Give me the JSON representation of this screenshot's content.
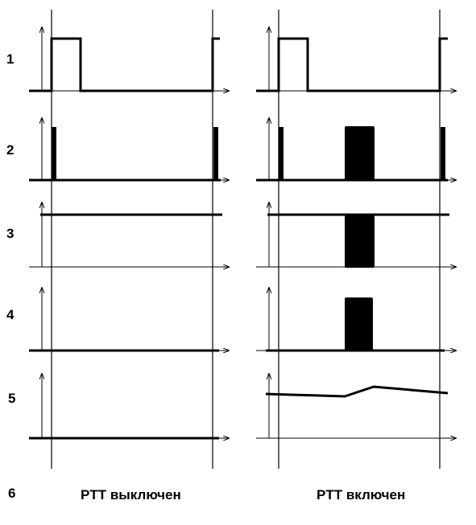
{
  "row_labels": [
    "1",
    "2",
    "3",
    "4",
    "5",
    "6"
  ],
  "captions": {
    "left": "PTT выключен",
    "right": "PTT включен"
  },
  "colors": {
    "ink": "#000000",
    "background": "#ffffff"
  }
}
